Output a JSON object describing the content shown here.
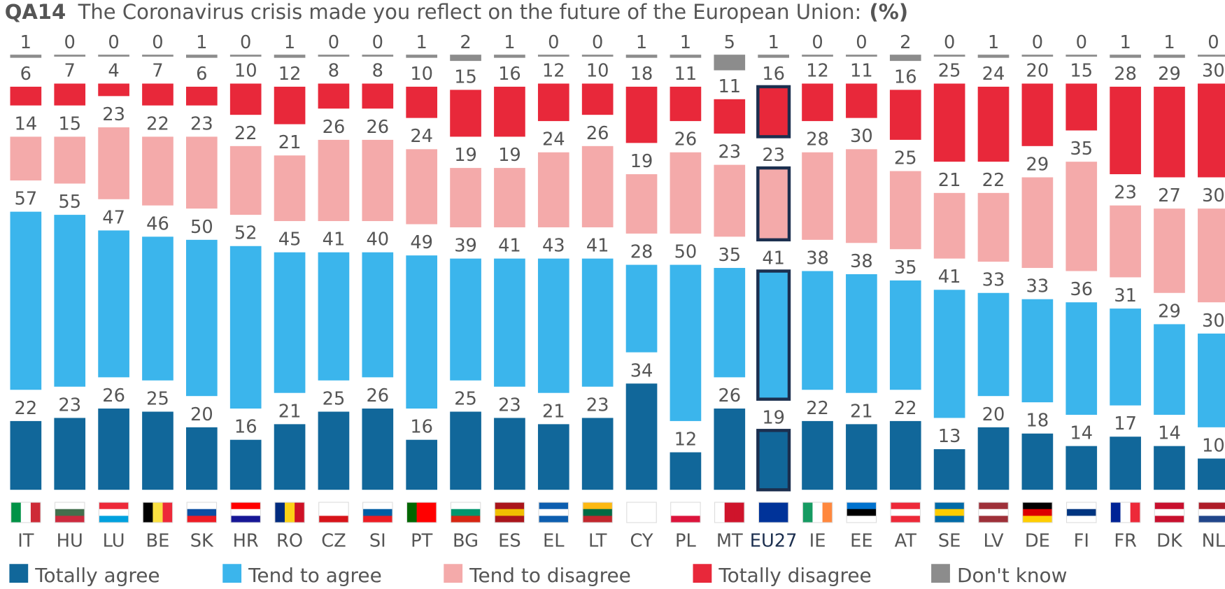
{
  "chart_data": {
    "type": "bar",
    "stacked": true,
    "question_id": "QA14",
    "title": "The Coronavirus crisis made you reflect on the future of the European Union:",
    "unit": "(%)",
    "categories": [
      "IT",
      "HU",
      "LU",
      "BE",
      "SK",
      "HR",
      "RO",
      "CZ",
      "SI",
      "PT",
      "BG",
      "ES",
      "EL",
      "LT",
      "CY",
      "PL",
      "MT",
      "EU27",
      "IE",
      "EE",
      "AT",
      "SE",
      "LV",
      "DE",
      "FI",
      "FR",
      "DK",
      "NL"
    ],
    "series": [
      {
        "name": "Totally agree",
        "color": "#11679a",
        "values": [
          22,
          23,
          26,
          25,
          20,
          16,
          21,
          25,
          26,
          16,
          25,
          23,
          21,
          23,
          34,
          12,
          26,
          19,
          22,
          21,
          22,
          13,
          20,
          18,
          14,
          17,
          14,
          10
        ]
      },
      {
        "name": "Tend to agree",
        "color": "#3bb5ec",
        "values": [
          57,
          55,
          47,
          46,
          50,
          52,
          45,
          41,
          40,
          49,
          39,
          41,
          43,
          41,
          28,
          50,
          35,
          41,
          38,
          38,
          35,
          41,
          33,
          33,
          36,
          31,
          29,
          30
        ]
      },
      {
        "name": "Tend to disagree",
        "color": "#f4aaaa",
        "values": [
          14,
          15,
          23,
          22,
          23,
          22,
          21,
          26,
          26,
          24,
          19,
          19,
          24,
          26,
          19,
          26,
          23,
          23,
          28,
          30,
          25,
          21,
          22,
          29,
          35,
          23,
          27,
          30
        ]
      },
      {
        "name": "Totally disagree",
        "color": "#e8283a",
        "values": [
          6,
          7,
          4,
          7,
          6,
          10,
          12,
          8,
          8,
          10,
          15,
          16,
          12,
          10,
          18,
          11,
          11,
          16,
          12,
          11,
          16,
          25,
          24,
          20,
          15,
          28,
          29,
          30
        ]
      },
      {
        "name": "Don't know",
        "color": "#8c8c8c",
        "values": [
          1,
          0,
          0,
          0,
          1,
          0,
          1,
          0,
          0,
          1,
          2,
          1,
          0,
          0,
          1,
          1,
          5,
          1,
          0,
          0,
          2,
          0,
          1,
          0,
          0,
          1,
          1,
          0
        ]
      }
    ]
  }
}
